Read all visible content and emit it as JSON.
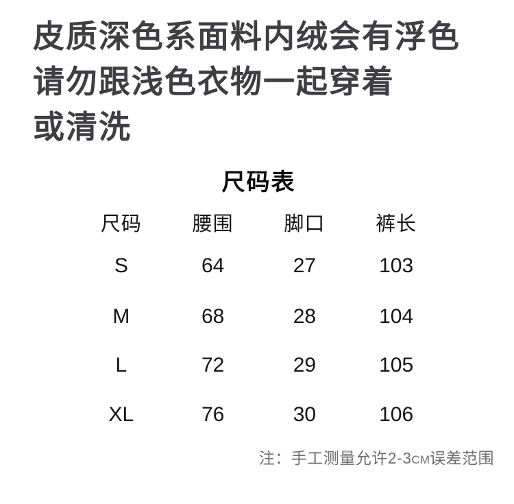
{
  "notice": {
    "lines": [
      "皮质深色系面料内绒会有浮色",
      "请勿跟浅色衣物一起穿着",
      "或清洗"
    ]
  },
  "size_chart": {
    "title": "尺码表",
    "columns": [
      "尺码",
      "腰围",
      "脚口",
      "裤长"
    ],
    "rows": [
      {
        "size": "S",
        "waist": "64",
        "leg_opening": "27",
        "pants_length": "103"
      },
      {
        "size": "M",
        "waist": "68",
        "leg_opening": "28",
        "pants_length": "104"
      },
      {
        "size": "L",
        "waist": "72",
        "leg_opening": "29",
        "pants_length": "105"
      },
      {
        "size": "XL",
        "waist": "76",
        "leg_opening": "30",
        "pants_length": "106"
      }
    ],
    "note": {
      "prefix": "注：手工测量允许2-3",
      "unit": "CM",
      "suffix": "误差范围"
    }
  },
  "colors": {
    "background": "#ffffff",
    "warning_text": "#3e3e43",
    "table_text": "#141414",
    "note_text": "#6e6e6e"
  }
}
